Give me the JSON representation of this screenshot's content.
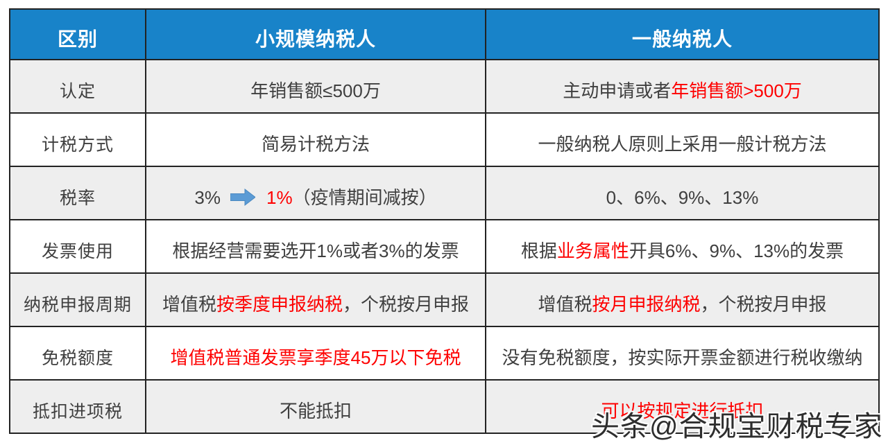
{
  "colors": {
    "header_bg": "#1883c9",
    "header_text": "#ffffff",
    "row_alt_bg": "#eeeeee",
    "row_bg": "#ffffff",
    "border": "#222222",
    "text_dark": "#3f3f3f",
    "text_red": "#fe0000",
    "arrow_blue": "#5b9bd5"
  },
  "table": {
    "headers": [
      {
        "label": "区别"
      },
      {
        "label": "小规模纳税人"
      },
      {
        "label": "一般纳税人"
      }
    ],
    "rows": [
      {
        "label": "认定",
        "small": [
          {
            "text": "年销售额≤500万",
            "color": "dark"
          }
        ],
        "general": [
          {
            "text": "主动申请或者",
            "color": "dark"
          },
          {
            "text": "年销售额>500万",
            "color": "red"
          }
        ]
      },
      {
        "label": "计税方式",
        "small": [
          {
            "text": "简易计税方法",
            "color": "dark"
          }
        ],
        "general": [
          {
            "text": "一般纳税人原则上采用一般计税方法",
            "color": "dark"
          }
        ]
      },
      {
        "label": "税率",
        "small": [
          {
            "text": "3%",
            "color": "dark"
          },
          {
            "icon": "arrow-right-icon"
          },
          {
            "text": "1%",
            "color": "red"
          },
          {
            "text": "（疫情期间减按）",
            "color": "dark"
          }
        ],
        "general": [
          {
            "text": "0、6%、9%、13%",
            "color": "dark"
          }
        ]
      },
      {
        "label": "发票使用",
        "small": [
          {
            "text": "根据经营需要选开1%或者3%的发票",
            "color": "dark"
          }
        ],
        "general": [
          {
            "text": "根据",
            "color": "dark"
          },
          {
            "text": "业务属性",
            "color": "red"
          },
          {
            "text": "开具6%、9%、13%的发票",
            "color": "dark"
          }
        ]
      },
      {
        "label": "纳税申报周期",
        "small": [
          {
            "text": "增值税",
            "color": "dark"
          },
          {
            "text": "按季度申报纳税",
            "color": "red"
          },
          {
            "text": "，个税按月申报",
            "color": "dark"
          }
        ],
        "general": [
          {
            "text": "增值税",
            "color": "dark"
          },
          {
            "text": "按月申报纳税",
            "color": "red"
          },
          {
            "text": "，个税按月申报",
            "color": "dark"
          }
        ]
      },
      {
        "label": "免税额度",
        "small": [
          {
            "text": "增值税普通发票享季度45万以下免税",
            "color": "red"
          }
        ],
        "general": [
          {
            "text": "没有免税额度，按实际开票金额进行税收缴纳",
            "color": "dark"
          }
        ]
      },
      {
        "label": "抵扣进项税",
        "small": [
          {
            "text": "不能抵扣",
            "color": "dark"
          }
        ],
        "general": [
          {
            "text": "可以按规定进行抵扣",
            "color": "red"
          }
        ]
      }
    ]
  },
  "watermark": {
    "text": "头条@合规宝财税专家"
  }
}
